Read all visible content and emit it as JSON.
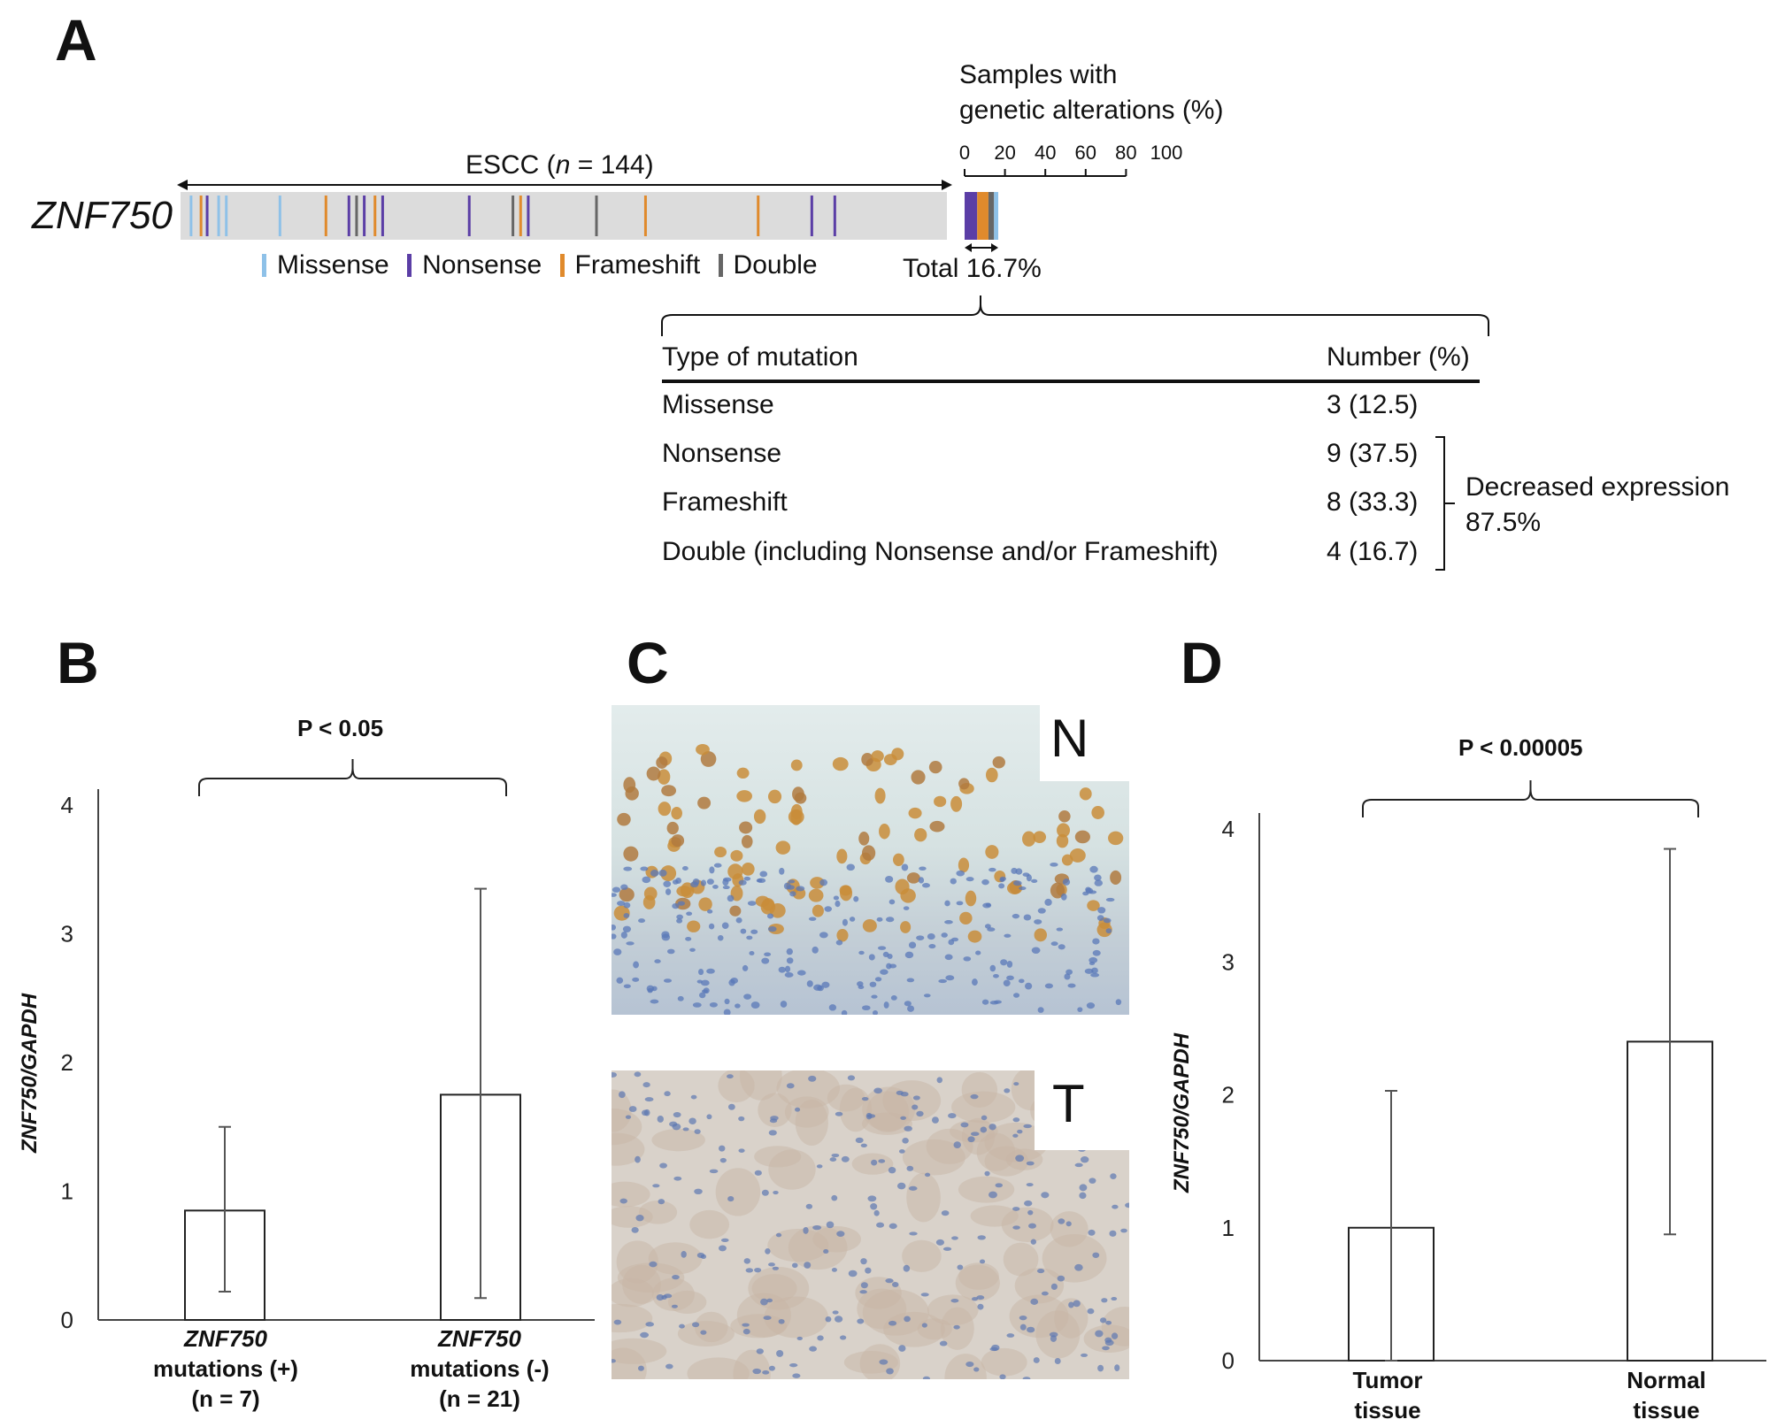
{
  "panel_a": {
    "letter": "A",
    "gene": "ZNF750",
    "cohort": {
      "prefix": "ESCC (",
      "n_symbol": "n",
      "suffix": " = 144)"
    },
    "legend": [
      {
        "label": "Missense",
        "color": "#8ec1e8"
      },
      {
        "label": "Nonsense",
        "color": "#5b3ea6"
      },
      {
        "label": "Frameshift",
        "color": "#e08a2c"
      },
      {
        "label": "Double",
        "color": "#666666"
      }
    ],
    "alteration_track": {
      "background_color": "#dcdcdc",
      "marks": [
        {
          "pos": 0.012,
          "type": "Missense"
        },
        {
          "pos": 0.025,
          "type": "Frameshift"
        },
        {
          "pos": 0.033,
          "type": "Nonsense"
        },
        {
          "pos": 0.048,
          "type": "Missense"
        },
        {
          "pos": 0.058,
          "type": "Missense"
        },
        {
          "pos": 0.128,
          "type": "Missense"
        },
        {
          "pos": 0.188,
          "type": "Frameshift"
        },
        {
          "pos": 0.218,
          "type": "Nonsense"
        },
        {
          "pos": 0.228,
          "type": "Double"
        },
        {
          "pos": 0.238,
          "type": "Nonsense"
        },
        {
          "pos": 0.252,
          "type": "Frameshift"
        },
        {
          "pos": 0.262,
          "type": "Nonsense"
        },
        {
          "pos": 0.375,
          "type": "Nonsense"
        },
        {
          "pos": 0.432,
          "type": "Double"
        },
        {
          "pos": 0.442,
          "type": "Frameshift"
        },
        {
          "pos": 0.452,
          "type": "Nonsense"
        },
        {
          "pos": 0.541,
          "type": "Double"
        },
        {
          "pos": 0.605,
          "type": "Frameshift"
        },
        {
          "pos": 0.752,
          "type": "Frameshift"
        },
        {
          "pos": 0.822,
          "type": "Nonsense"
        },
        {
          "pos": 0.852,
          "type": "Nonsense"
        }
      ]
    },
    "percent_axis": {
      "title_line1": "Samples with",
      "title_line2": "genetic alterations (%)",
      "ticks": [
        "0",
        "20",
        "40",
        "60",
        "80",
        "100"
      ]
    },
    "stacked_total": {
      "label": "Total 16.7%",
      "segments": [
        {
          "type": "Nonsense",
          "percent": 6.25
        },
        {
          "type": "Frameshift",
          "percent": 5.56
        },
        {
          "type": "Double",
          "percent": 2.78
        },
        {
          "type": "Missense",
          "percent": 2.08
        }
      ]
    },
    "table": {
      "headers": [
        "Type of mutation",
        "Number (%)"
      ],
      "rows": [
        {
          "type": "Missense",
          "number": "3 (12.5)"
        },
        {
          "type": "Nonsense",
          "number": "9 (37.5)"
        },
        {
          "type": "Frameshift",
          "number": "8 (33.3)"
        },
        {
          "type": "Double (including Nonsense and/or Frameshift)",
          "number": "4 (16.7)"
        }
      ],
      "bracket_note_line1": "Decreased expression",
      "bracket_note_line2": "87.5%"
    }
  },
  "panel_b": {
    "letter": "B",
    "significance": "P < 0.05",
    "ylabel": "ZNF750/GAPDH",
    "categories": [
      {
        "line1": "ZNF750",
        "line2": "mutations (+)",
        "line3": "(n = 7)"
      },
      {
        "line1": "ZNF750",
        "line2": "mutations (-)",
        "line3": "(n = 21)"
      }
    ]
  },
  "panel_c": {
    "letter": "C",
    "normal_label": "N",
    "tumor_label": "T"
  },
  "panel_d": {
    "letter": "D",
    "significance": "P < 0.00005",
    "ylabel": "ZNF750/GAPDH",
    "categories": [
      {
        "line1": "Tumor",
        "line2": "tissue"
      },
      {
        "line1": "Normal",
        "line2": "tissue"
      }
    ]
  },
  "chart_data": [
    {
      "type": "bar",
      "title": "",
      "ylabel": "ZNF750/GAPDH",
      "categories": [
        "ZNF750 mutations (+) (n = 7)",
        "ZNF750 mutations (-) (n = 21)"
      ],
      "values": [
        0.85,
        1.75
      ],
      "error_low": [
        0.22,
        0.17
      ],
      "error_high": [
        1.5,
        3.35
      ],
      "ylim": [
        0,
        4
      ],
      "yticks": [
        0,
        1,
        2,
        3,
        4
      ],
      "grid": false,
      "annotation": "P < 0.05"
    },
    {
      "type": "bar",
      "title": "",
      "ylabel": "ZNF750/GAPDH",
      "categories": [
        "Tumor tissue",
        "Normal tissue"
      ],
      "values": [
        1.0,
        2.4
      ],
      "error_low": [
        0.0,
        0.95
      ],
      "error_high": [
        2.03,
        3.85
      ],
      "ylim": [
        0,
        4
      ],
      "yticks": [
        0,
        1,
        2,
        3,
        4
      ],
      "grid": false,
      "annotation": "P < 0.00005"
    }
  ]
}
